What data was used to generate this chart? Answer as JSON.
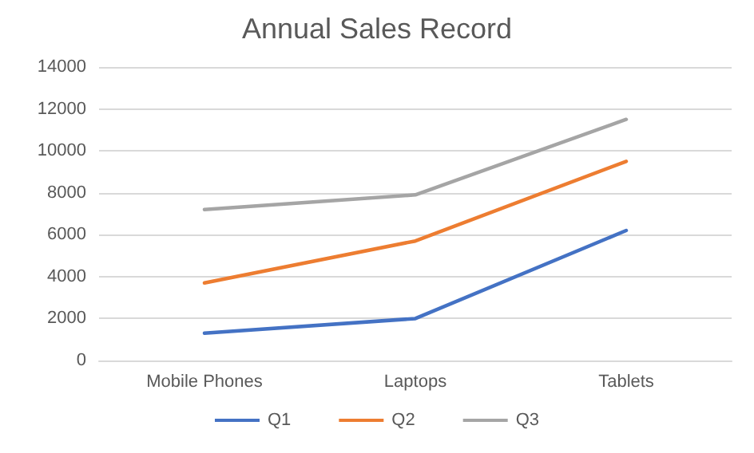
{
  "chart_data": {
    "type": "line",
    "title": "Annual Sales Record",
    "categories": [
      "Mobile Phones",
      "Laptops",
      "Tablets"
    ],
    "series": [
      {
        "name": "Q1",
        "color": "#4472c4",
        "values": [
          1300,
          2000,
          6200
        ]
      },
      {
        "name": "Q2",
        "color": "#ed7d31",
        "values": [
          3700,
          5700,
          9500
        ]
      },
      {
        "name": "Q3",
        "color": "#a5a5a5",
        "values": [
          7200,
          7900,
          11500
        ]
      }
    ],
    "ylim": [
      0,
      14000
    ],
    "yticks": [
      0,
      2000,
      4000,
      6000,
      8000,
      10000,
      12000,
      14000
    ],
    "grid": "y",
    "legend": "bottom",
    "marker": "none",
    "line_style": "solid"
  }
}
